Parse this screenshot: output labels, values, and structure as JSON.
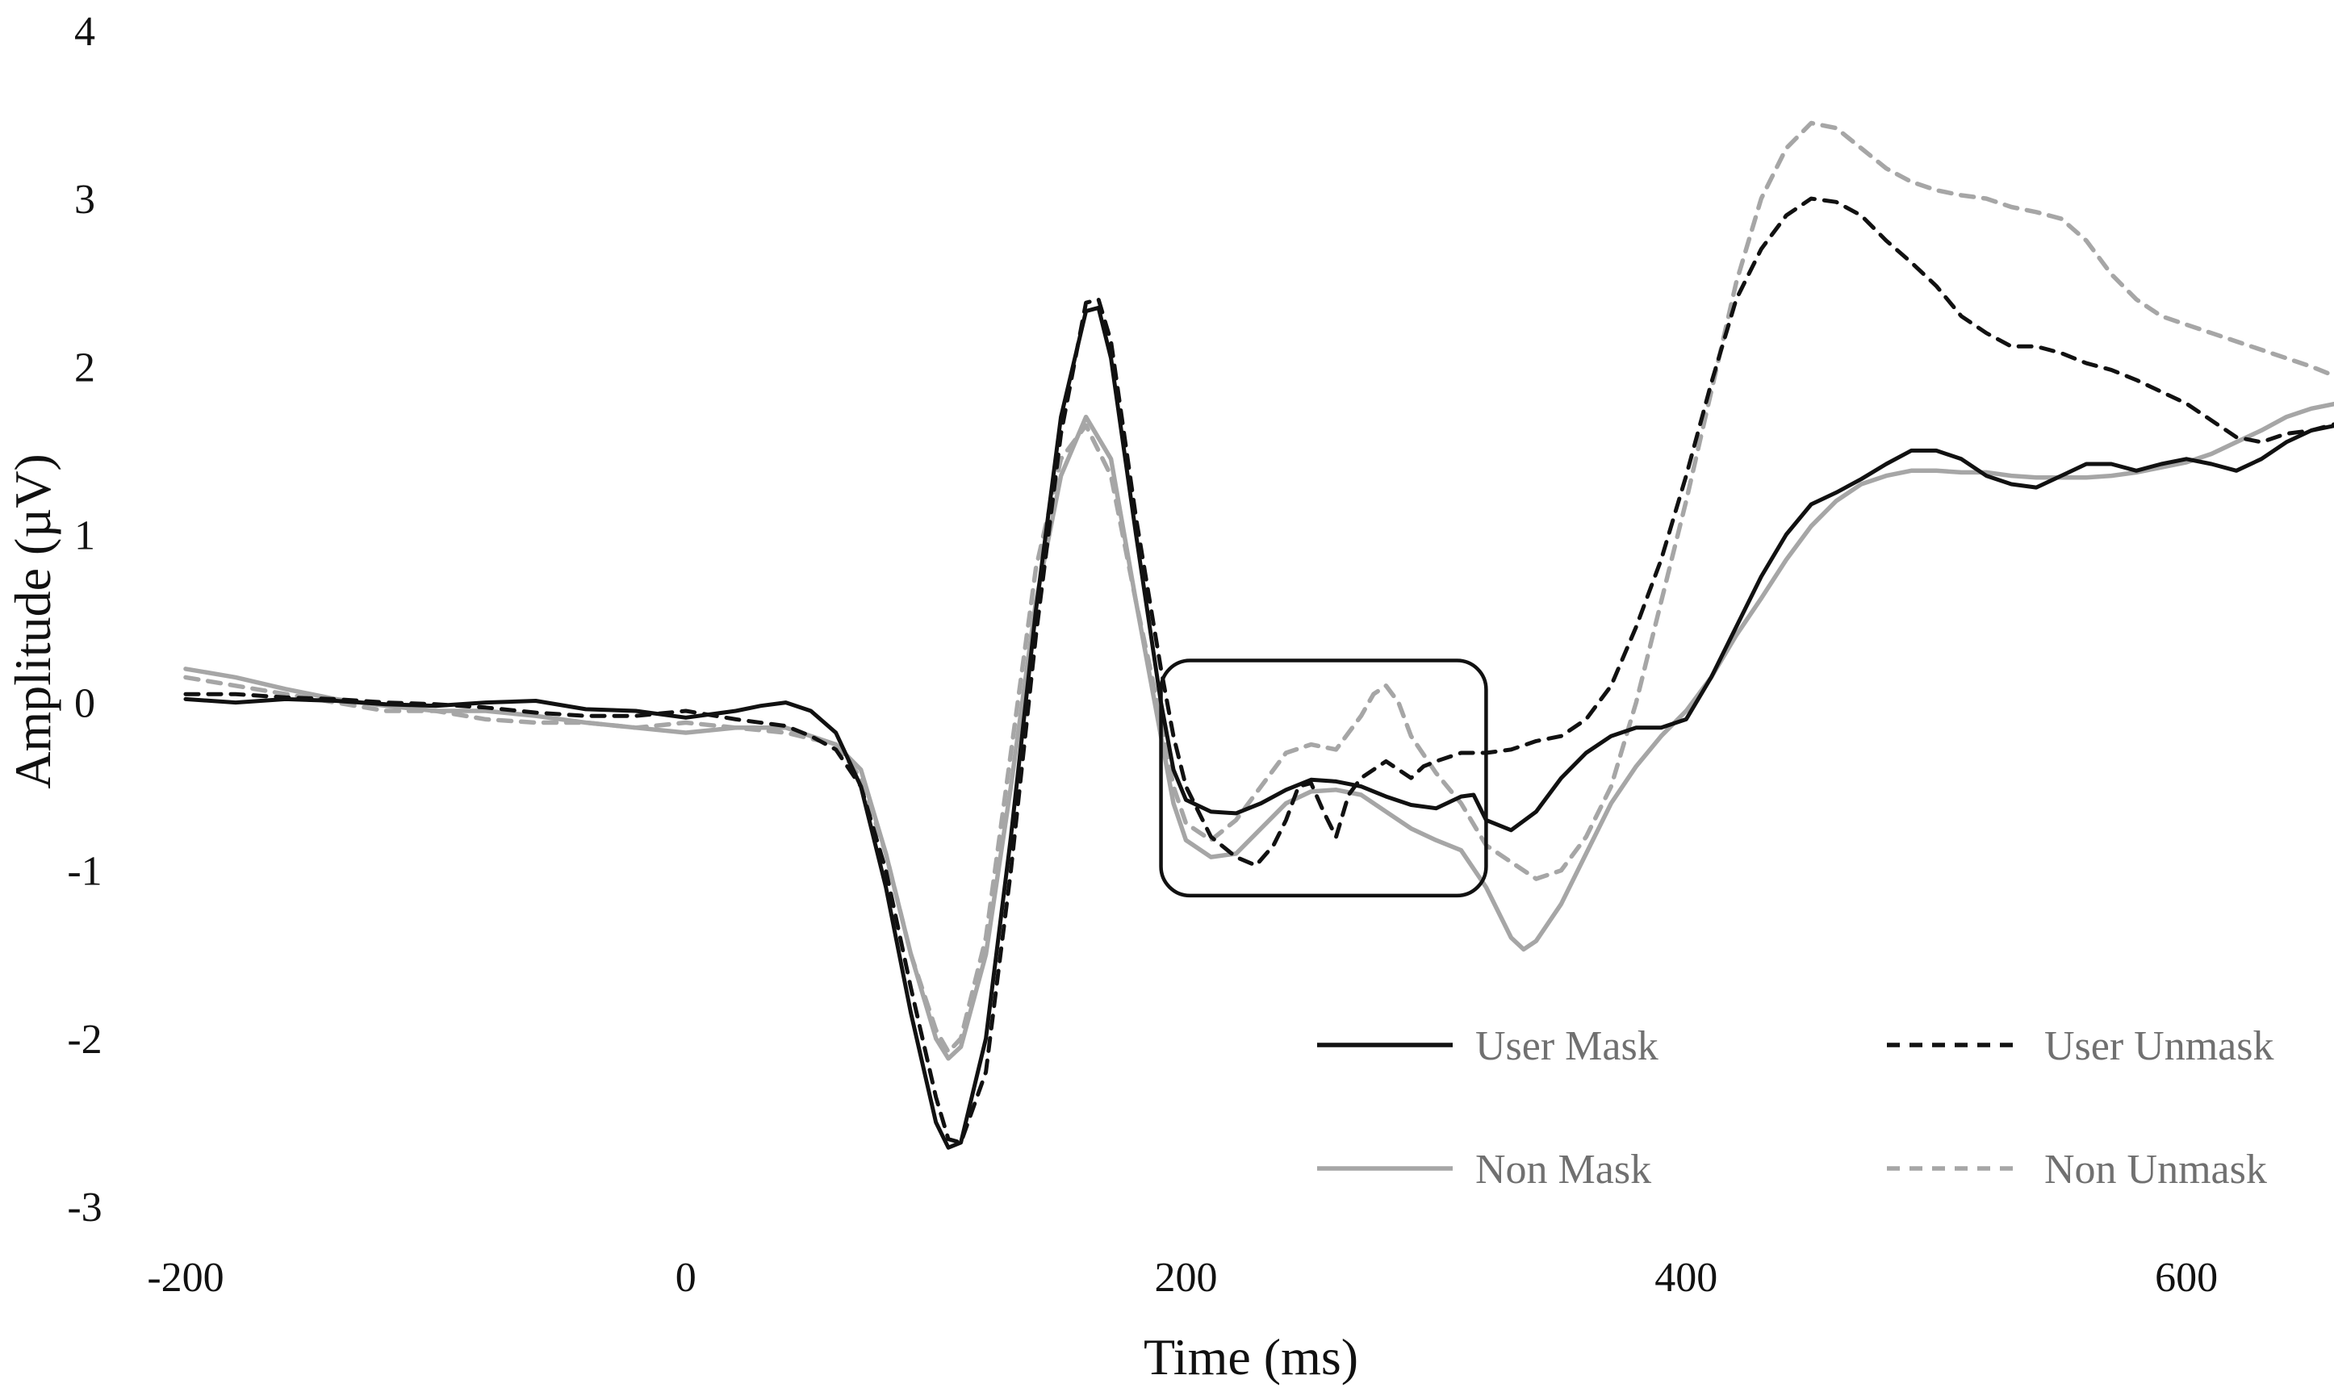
{
  "chart_data": {
    "type": "line",
    "title": "",
    "xlabel": "Time (ms)",
    "ylabel": "Amplitude (µV)",
    "xlim": [
      -200,
      660
    ],
    "ylim": [
      -3,
      4
    ],
    "xticks": [
      -200,
      0,
      200,
      400,
      600
    ],
    "yticks": [
      -3,
      -2,
      -1,
      0,
      1,
      2,
      3,
      4
    ],
    "grid": false,
    "legend_position": "bottom-right",
    "annotation": {
      "type": "rounded-rectangle",
      "x_range": [
        190,
        320
      ],
      "y_range": [
        -1.15,
        0.25
      ]
    },
    "series": [
      {
        "name": "User Mask",
        "color": "#111111",
        "dash": "solid",
        "points": [
          [
            -200,
            0.02
          ],
          [
            -180,
            0.0
          ],
          [
            -160,
            0.02
          ],
          [
            -140,
            0.01
          ],
          [
            -120,
            -0.01
          ],
          [
            -100,
            -0.02
          ],
          [
            -80,
            0.0
          ],
          [
            -60,
            0.01
          ],
          [
            -40,
            -0.04
          ],
          [
            -20,
            -0.05
          ],
          [
            0,
            -0.09
          ],
          [
            20,
            -0.05
          ],
          [
            30,
            -0.02
          ],
          [
            40,
            0.0
          ],
          [
            50,
            -0.05
          ],
          [
            60,
            -0.18
          ],
          [
            70,
            -0.5
          ],
          [
            80,
            -1.1
          ],
          [
            90,
            -1.85
          ],
          [
            100,
            -2.5
          ],
          [
            105,
            -2.65
          ],
          [
            110,
            -2.62
          ],
          [
            120,
            -2.0
          ],
          [
            130,
            -0.8
          ],
          [
            140,
            0.55
          ],
          [
            150,
            1.7
          ],
          [
            160,
            2.33
          ],
          [
            165,
            2.35
          ],
          [
            170,
            2.05
          ],
          [
            180,
            1.0
          ],
          [
            190,
            0.0
          ],
          [
            195,
            -0.4
          ],
          [
            200,
            -0.58
          ],
          [
            210,
            -0.65
          ],
          [
            220,
            -0.66
          ],
          [
            230,
            -0.6
          ],
          [
            240,
            -0.52
          ],
          [
            250,
            -0.46
          ],
          [
            260,
            -0.47
          ],
          [
            270,
            -0.5
          ],
          [
            280,
            -0.56
          ],
          [
            290,
            -0.61
          ],
          [
            300,
            -0.63
          ],
          [
            310,
            -0.56
          ],
          [
            315,
            -0.55
          ],
          [
            320,
            -0.7
          ],
          [
            330,
            -0.76
          ],
          [
            340,
            -0.65
          ],
          [
            350,
            -0.45
          ],
          [
            360,
            -0.3
          ],
          [
            370,
            -0.2
          ],
          [
            380,
            -0.15
          ],
          [
            390,
            -0.15
          ],
          [
            400,
            -0.1
          ],
          [
            410,
            0.15
          ],
          [
            420,
            0.45
          ],
          [
            430,
            0.75
          ],
          [
            440,
            1.0
          ],
          [
            450,
            1.18
          ],
          [
            460,
            1.25
          ],
          [
            470,
            1.33
          ],
          [
            480,
            1.42
          ],
          [
            490,
            1.5
          ],
          [
            500,
            1.5
          ],
          [
            510,
            1.45
          ],
          [
            520,
            1.35
          ],
          [
            530,
            1.3
          ],
          [
            540,
            1.28
          ],
          [
            550,
            1.35
          ],
          [
            560,
            1.42
          ],
          [
            570,
            1.42
          ],
          [
            580,
            1.38
          ],
          [
            590,
            1.42
          ],
          [
            600,
            1.45
          ],
          [
            610,
            1.42
          ],
          [
            620,
            1.38
          ],
          [
            630,
            1.45
          ],
          [
            640,
            1.55
          ],
          [
            650,
            1.62
          ],
          [
            660,
            1.65
          ]
        ]
      },
      {
        "name": "User Unmask",
        "color": "#111111",
        "dash": "dashed",
        "points": [
          [
            -200,
            0.05
          ],
          [
            -180,
            0.05
          ],
          [
            -160,
            0.03
          ],
          [
            -140,
            0.02
          ],
          [
            -120,
            0.0
          ],
          [
            -100,
            -0.01
          ],
          [
            -80,
            -0.03
          ],
          [
            -60,
            -0.06
          ],
          [
            -40,
            -0.08
          ],
          [
            -20,
            -0.08
          ],
          [
            0,
            -0.05
          ],
          [
            20,
            -0.1
          ],
          [
            40,
            -0.14
          ],
          [
            50,
            -0.2
          ],
          [
            60,
            -0.28
          ],
          [
            70,
            -0.5
          ],
          [
            80,
            -1.0
          ],
          [
            90,
            -1.7
          ],
          [
            100,
            -2.35
          ],
          [
            105,
            -2.6
          ],
          [
            110,
            -2.62
          ],
          [
            120,
            -2.2
          ],
          [
            130,
            -1.0
          ],
          [
            140,
            0.4
          ],
          [
            150,
            1.6
          ],
          [
            160,
            2.38
          ],
          [
            165,
            2.4
          ],
          [
            170,
            2.15
          ],
          [
            180,
            1.1
          ],
          [
            190,
            0.2
          ],
          [
            195,
            -0.2
          ],
          [
            200,
            -0.5
          ],
          [
            210,
            -0.8
          ],
          [
            220,
            -0.92
          ],
          [
            228,
            -0.97
          ],
          [
            235,
            -0.85
          ],
          [
            240,
            -0.7
          ],
          [
            245,
            -0.5
          ],
          [
            250,
            -0.48
          ],
          [
            255,
            -0.65
          ],
          [
            260,
            -0.8
          ],
          [
            265,
            -0.55
          ],
          [
            270,
            -0.45
          ],
          [
            280,
            -0.35
          ],
          [
            290,
            -0.45
          ],
          [
            295,
            -0.38
          ],
          [
            300,
            -0.35
          ],
          [
            310,
            -0.3
          ],
          [
            320,
            -0.3
          ],
          [
            330,
            -0.28
          ],
          [
            340,
            -0.23
          ],
          [
            350,
            -0.2
          ],
          [
            360,
            -0.1
          ],
          [
            370,
            0.1
          ],
          [
            380,
            0.45
          ],
          [
            390,
            0.85
          ],
          [
            400,
            1.35
          ],
          [
            410,
            1.9
          ],
          [
            420,
            2.4
          ],
          [
            430,
            2.7
          ],
          [
            440,
            2.9
          ],
          [
            450,
            3.0
          ],
          [
            460,
            2.98
          ],
          [
            470,
            2.9
          ],
          [
            480,
            2.75
          ],
          [
            490,
            2.62
          ],
          [
            500,
            2.48
          ],
          [
            510,
            2.3
          ],
          [
            520,
            2.2
          ],
          [
            530,
            2.12
          ],
          [
            540,
            2.12
          ],
          [
            550,
            2.08
          ],
          [
            560,
            2.02
          ],
          [
            570,
            1.98
          ],
          [
            580,
            1.92
          ],
          [
            590,
            1.85
          ],
          [
            600,
            1.78
          ],
          [
            610,
            1.68
          ],
          [
            620,
            1.58
          ],
          [
            630,
            1.55
          ],
          [
            640,
            1.6
          ],
          [
            650,
            1.62
          ],
          [
            660,
            1.66
          ]
        ]
      },
      {
        "name": "Non Mask",
        "color": "#a6a6a6",
        "dash": "solid",
        "points": [
          [
            -200,
            0.2
          ],
          [
            -180,
            0.15
          ],
          [
            -160,
            0.08
          ],
          [
            -140,
            0.02
          ],
          [
            -120,
            -0.02
          ],
          [
            -100,
            -0.05
          ],
          [
            -80,
            -0.05
          ],
          [
            -60,
            -0.08
          ],
          [
            -40,
            -0.12
          ],
          [
            -20,
            -0.15
          ],
          [
            0,
            -0.18
          ],
          [
            20,
            -0.15
          ],
          [
            40,
            -0.15
          ],
          [
            60,
            -0.25
          ],
          [
            70,
            -0.4
          ],
          [
            80,
            -0.9
          ],
          [
            90,
            -1.5
          ],
          [
            100,
            -2.0
          ],
          [
            105,
            -2.12
          ],
          [
            110,
            -2.05
          ],
          [
            120,
            -1.5
          ],
          [
            130,
            -0.5
          ],
          [
            140,
            0.6
          ],
          [
            150,
            1.35
          ],
          [
            160,
            1.7
          ],
          [
            170,
            1.45
          ],
          [
            180,
            0.6
          ],
          [
            190,
            -0.2
          ],
          [
            195,
            -0.6
          ],
          [
            200,
            -0.82
          ],
          [
            210,
            -0.92
          ],
          [
            220,
            -0.9
          ],
          [
            230,
            -0.75
          ],
          [
            240,
            -0.6
          ],
          [
            250,
            -0.53
          ],
          [
            260,
            -0.52
          ],
          [
            270,
            -0.55
          ],
          [
            280,
            -0.65
          ],
          [
            290,
            -0.75
          ],
          [
            300,
            -0.82
          ],
          [
            310,
            -0.88
          ],
          [
            320,
            -1.1
          ],
          [
            330,
            -1.4
          ],
          [
            335,
            -1.47
          ],
          [
            340,
            -1.42
          ],
          [
            350,
            -1.2
          ],
          [
            360,
            -0.9
          ],
          [
            370,
            -0.6
          ],
          [
            380,
            -0.38
          ],
          [
            390,
            -0.2
          ],
          [
            400,
            -0.05
          ],
          [
            410,
            0.15
          ],
          [
            420,
            0.4
          ],
          [
            430,
            0.62
          ],
          [
            440,
            0.85
          ],
          [
            450,
            1.05
          ],
          [
            460,
            1.2
          ],
          [
            470,
            1.3
          ],
          [
            480,
            1.35
          ],
          [
            490,
            1.38
          ],
          [
            500,
            1.38
          ],
          [
            510,
            1.37
          ],
          [
            520,
            1.37
          ],
          [
            530,
            1.35
          ],
          [
            540,
            1.34
          ],
          [
            550,
            1.34
          ],
          [
            560,
            1.34
          ],
          [
            570,
            1.35
          ],
          [
            580,
            1.37
          ],
          [
            590,
            1.4
          ],
          [
            600,
            1.43
          ],
          [
            610,
            1.48
          ],
          [
            620,
            1.55
          ],
          [
            630,
            1.62
          ],
          [
            640,
            1.7
          ],
          [
            650,
            1.75
          ],
          [
            660,
            1.78
          ]
        ]
      },
      {
        "name": "Non Unmask",
        "color": "#a6a6a6",
        "dash": "dashed",
        "points": [
          [
            -200,
            0.15
          ],
          [
            -180,
            0.1
          ],
          [
            -160,
            0.05
          ],
          [
            -140,
            0.0
          ],
          [
            -120,
            -0.05
          ],
          [
            -100,
            -0.05
          ],
          [
            -80,
            -0.1
          ],
          [
            -60,
            -0.12
          ],
          [
            -40,
            -0.12
          ],
          [
            -20,
            -0.15
          ],
          [
            0,
            -0.12
          ],
          [
            20,
            -0.15
          ],
          [
            40,
            -0.18
          ],
          [
            60,
            -0.25
          ],
          [
            70,
            -0.45
          ],
          [
            80,
            -0.9
          ],
          [
            90,
            -1.5
          ],
          [
            100,
            -1.95
          ],
          [
            105,
            -2.08
          ],
          [
            110,
            -2.0
          ],
          [
            120,
            -1.4
          ],
          [
            130,
            -0.3
          ],
          [
            140,
            0.8
          ],
          [
            150,
            1.45
          ],
          [
            160,
            1.65
          ],
          [
            170,
            1.35
          ],
          [
            180,
            0.6
          ],
          [
            190,
            -0.1
          ],
          [
            195,
            -0.5
          ],
          [
            200,
            -0.72
          ],
          [
            210,
            -0.82
          ],
          [
            220,
            -0.7
          ],
          [
            230,
            -0.5
          ],
          [
            240,
            -0.3
          ],
          [
            250,
            -0.25
          ],
          [
            260,
            -0.28
          ],
          [
            270,
            -0.08
          ],
          [
            275,
            0.05
          ],
          [
            280,
            0.1
          ],
          [
            285,
            0.0
          ],
          [
            290,
            -0.2
          ],
          [
            300,
            -0.42
          ],
          [
            310,
            -0.6
          ],
          [
            320,
            -0.85
          ],
          [
            330,
            -0.95
          ],
          [
            340,
            -1.05
          ],
          [
            350,
            -1.0
          ],
          [
            360,
            -0.8
          ],
          [
            370,
            -0.5
          ],
          [
            380,
            0.0
          ],
          [
            390,
            0.6
          ],
          [
            400,
            1.2
          ],
          [
            410,
            1.85
          ],
          [
            420,
            2.5
          ],
          [
            430,
            3.0
          ],
          [
            440,
            3.3
          ],
          [
            450,
            3.45
          ],
          [
            460,
            3.42
          ],
          [
            470,
            3.3
          ],
          [
            480,
            3.18
          ],
          [
            490,
            3.1
          ],
          [
            500,
            3.05
          ],
          [
            510,
            3.02
          ],
          [
            520,
            3.0
          ],
          [
            530,
            2.95
          ],
          [
            540,
            2.92
          ],
          [
            550,
            2.88
          ],
          [
            560,
            2.75
          ],
          [
            570,
            2.55
          ],
          [
            580,
            2.4
          ],
          [
            590,
            2.3
          ],
          [
            600,
            2.25
          ],
          [
            610,
            2.2
          ],
          [
            620,
            2.15
          ],
          [
            630,
            2.1
          ],
          [
            640,
            2.05
          ],
          [
            650,
            2.0
          ],
          [
            660,
            1.94
          ]
        ]
      }
    ]
  }
}
